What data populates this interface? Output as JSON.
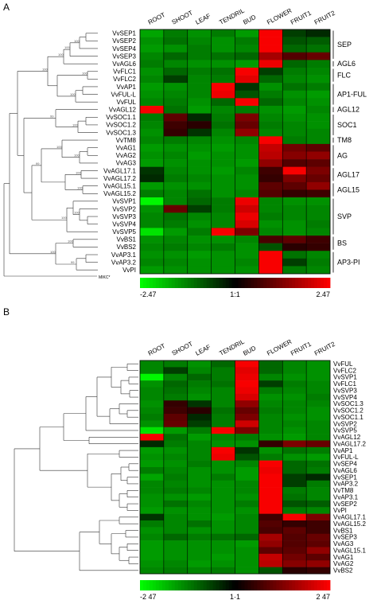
{
  "chart_data": [
    {
      "type": "heatmap",
      "panel_label": "A",
      "columns": [
        "ROOT",
        "SHOOT",
        "LEAF",
        "TENDRIL",
        "BUD",
        "FLOWER",
        "FRUIT1",
        "FRUIT2"
      ],
      "rows": [
        "VvSEP1",
        "VvSEP2",
        "VvSEP4",
        "VvSEP3",
        "VvAGL6",
        "VvFLC1",
        "VvFLC2",
        "VvAP1",
        "VvFUL-L",
        "VvFUL",
        "VvAGL12",
        "VvSOC1.1",
        "VvSOC1.2",
        "VvSOC1.3",
        "VvTM8",
        "VvAG1",
        "VvAG2",
        "VvAG3",
        "VvAGL17.1",
        "VvAGL17.2",
        "VvAGL15.1",
        "VvAGL15.2",
        "VvSVP1",
        "VvSVP2",
        "VvSVP3",
        "VvSVP4",
        "VvSVP5",
        "VvBS1",
        "VvBS2",
        "VvAP3.1",
        "VvAP3.2",
        "VvPI"
      ],
      "outgroup_label": "MIKC*",
      "values": [
        [
          -1.6,
          -1.2,
          -1.4,
          -1.2,
          -1.5,
          2.4,
          -0.6,
          -0.4
        ],
        [
          -1.4,
          -1.1,
          -1.3,
          -1.4,
          -1.2,
          2.4,
          -0.8,
          -0.9
        ],
        [
          -1.5,
          -1.4,
          -1.2,
          -1.4,
          -1.3,
          2.4,
          -1.0,
          -1.1
        ],
        [
          -1.3,
          -1.0,
          -1.2,
          -1.1,
          -1.0,
          1.6,
          0.8,
          1.0
        ],
        [
          -1.2,
          -1.3,
          -1.4,
          -1.4,
          -1.5,
          2.3,
          -1.0,
          -1.2
        ],
        [
          -1.4,
          -1.0,
          -1.2,
          -1.1,
          2.4,
          -0.6,
          -1.2,
          -1.3
        ],
        [
          -1.3,
          -0.6,
          -1.3,
          -1.2,
          2.2,
          -1.0,
          -1.3,
          -1.4
        ],
        [
          -1.5,
          -1.4,
          -1.3,
          2.4,
          -0.5,
          -1.4,
          -1.1,
          -1.2
        ],
        [
          -1.4,
          -1.3,
          -1.3,
          2.3,
          -0.8,
          -1.2,
          -1.4,
          -1.5
        ],
        [
          -1.3,
          -1.2,
          -1.4,
          -1.0,
          2.4,
          -1.0,
          -1.3,
          -1.4
        ],
        [
          2.4,
          -1.1,
          -1.5,
          -1.3,
          -1.2,
          -1.4,
          -1.5,
          -1.3
        ],
        [
          -1.2,
          0.9,
          -0.4,
          -1.2,
          1.2,
          -1.3,
          -1.4,
          -1.4
        ],
        [
          -1.3,
          0.6,
          0.4,
          -1.1,
          1.0,
          -1.2,
          -1.3,
          -1.4
        ],
        [
          -1.4,
          0.5,
          -0.5,
          -1.3,
          1.4,
          -1.3,
          -1.3,
          -1.3
        ],
        [
          -1.3,
          -1.2,
          -1.3,
          -1.4,
          -1.3,
          2.4,
          -1.2,
          -1.3
        ],
        [
          -1.5,
          -1.4,
          -1.4,
          -1.5,
          -1.4,
          1.9,
          1.1,
          0.9
        ],
        [
          -1.4,
          -1.3,
          -1.5,
          -1.4,
          -1.4,
          1.8,
          1.3,
          1.4
        ],
        [
          -1.5,
          -1.4,
          -1.4,
          -1.4,
          -1.5,
          1.4,
          0.8,
          0.9
        ],
        [
          -0.5,
          -1.3,
          -1.4,
          -1.5,
          -1.3,
          0.6,
          2.4,
          1.2
        ],
        [
          -0.4,
          -1.2,
          -1.3,
          -1.4,
          -1.4,
          0.5,
          1.2,
          1.0
        ],
        [
          -1.5,
          -1.4,
          -1.4,
          -1.4,
          -1.4,
          0.9,
          0.9,
          1.4
        ],
        [
          -1.2,
          -1.3,
          -1.1,
          -1.4,
          -1.3,
          0.8,
          0.5,
          0.6
        ],
        [
          -2.4,
          -1.3,
          -1.0,
          -1.2,
          2.3,
          -1.3,
          -1.4,
          -1.4
        ],
        [
          -1.4,
          1.0,
          -0.6,
          -1.2,
          2.0,
          -1.3,
          -1.3,
          -1.3
        ],
        [
          -1.3,
          -1.1,
          -1.3,
          -1.3,
          2.3,
          -1.2,
          -1.3,
          -1.3
        ],
        [
          -1.3,
          -1.2,
          -1.4,
          -1.3,
          2.1,
          -1.4,
          -1.4,
          -1.2
        ],
        [
          -2.2,
          -1.5,
          -1.2,
          2.4,
          1.2,
          -1.3,
          -1.4,
          -1.3
        ],
        [
          -1.4,
          -1.3,
          -1.4,
          -1.4,
          -1.3,
          0.7,
          0.9,
          0.6
        ],
        [
          -1.3,
          -1.2,
          -1.3,
          -1.2,
          -1.4,
          -0.8,
          0.4,
          0.5
        ],
        [
          -1.4,
          -1.4,
          -1.5,
          -1.4,
          -1.4,
          2.4,
          -1.1,
          -1.3
        ],
        [
          -1.3,
          -1.3,
          -1.4,
          -1.4,
          -1.3,
          2.4,
          -0.6,
          -1.2
        ],
        [
          -1.5,
          -1.4,
          -1.4,
          -1.4,
          -1.4,
          2.4,
          -1.2,
          -1.3
        ]
      ],
      "groups": [
        {
          "label": "SEP",
          "rows": [
            0,
            3
          ]
        },
        {
          "label": "AGL6",
          "rows": [
            4,
            4
          ]
        },
        {
          "label": "FLC",
          "rows": [
            5,
            6
          ]
        },
        {
          "label": "AP1-FUL",
          "rows": [
            7,
            9
          ]
        },
        {
          "label": "AGL12",
          "rows": [
            10,
            10
          ]
        },
        {
          "label": "SOC1",
          "rows": [
            11,
            13
          ]
        },
        {
          "label": "TM8",
          "rows": [
            14,
            14
          ]
        },
        {
          "label": "AG",
          "rows": [
            15,
            17
          ]
        },
        {
          "label": "AGL17",
          "rows": [
            18,
            19
          ]
        },
        {
          "label": "AGL15",
          "rows": [
            20,
            21
          ]
        },
        {
          "label": "SVP",
          "rows": [
            22,
            26
          ]
        },
        {
          "label": "BS",
          "rows": [
            27,
            28
          ]
        },
        {
          "label": "AP3-PI",
          "rows": [
            29,
            31
          ]
        }
      ],
      "bootstrap_labels": [
        "100",
        "100",
        "100",
        "100",
        "100",
        "100",
        "100",
        "100",
        "100",
        "100",
        "100",
        "100",
        "99",
        "99",
        "100",
        "99",
        "100",
        "100"
      ],
      "colorscale": {
        "min": -2.47,
        "mid": 0,
        "max": 2.47,
        "min_color": "#00ff00",
        "mid_color": "#000000",
        "max_color": "#ff0000"
      },
      "scale_labels": [
        "-2.47",
        "1:1",
        "2.47"
      ]
    },
    {
      "type": "heatmap",
      "panel_label": "B",
      "columns": [
        "ROOT",
        "SHOOT",
        "LEAF",
        "TENDRIL",
        "BUD",
        "FLOWER",
        "FRUIT1",
        "FRUIT2"
      ],
      "rows": [
        "VvFUL",
        "VvFLC2",
        "VvSVP1",
        "VvFLC1",
        "VvSVP3",
        "VvSVP4",
        "VvSOC1.3",
        "VvSOC1.2",
        "VvSOC1.1",
        "VvSVP2",
        "VvSVP5",
        "VvAGL12",
        "VvAGL17.2",
        "VvAP1",
        "VvFUL-L",
        "VvSEP4",
        "VvAGL6",
        "VvSEP1",
        "VvAP3.2",
        "VvTM8",
        "VvAP3.1",
        "VvSEP2",
        "VvPI",
        "VvAGL17.1",
        "VvAGL15.2",
        "VvBS1",
        "VvSEP3",
        "VvAG3",
        "VvAGL15.1",
        "VvAG1",
        "VvAG2",
        "VvBS2"
      ],
      "values": [
        [
          -1.3,
          -1.2,
          -1.4,
          -1.0,
          2.4,
          -1.0,
          -1.3,
          -1.4
        ],
        [
          -1.3,
          -0.6,
          -1.3,
          -1.2,
          2.2,
          -1.0,
          -1.3,
          -1.4
        ],
        [
          -2.4,
          -1.3,
          -1.0,
          -1.2,
          2.3,
          -1.3,
          -1.4,
          -1.4
        ],
        [
          -1.4,
          -1.0,
          -1.2,
          -1.1,
          2.4,
          -0.6,
          -1.2,
          -1.3
        ],
        [
          -1.3,
          -1.1,
          -1.3,
          -1.3,
          2.3,
          -1.2,
          -1.3,
          -1.3
        ],
        [
          -1.3,
          -1.2,
          -1.4,
          -1.3,
          2.1,
          -1.4,
          -1.4,
          -1.2
        ],
        [
          -1.4,
          0.5,
          -0.5,
          -1.3,
          1.4,
          -1.3,
          -1.3,
          -1.3
        ],
        [
          -1.3,
          0.6,
          0.4,
          -1.1,
          1.0,
          -1.2,
          -1.3,
          -1.4
        ],
        [
          -1.2,
          0.9,
          -0.4,
          -1.2,
          1.2,
          -1.3,
          -1.4,
          -1.4
        ],
        [
          -1.4,
          1.0,
          -0.6,
          -1.2,
          2.0,
          -1.3,
          -1.3,
          -1.3
        ],
        [
          -2.2,
          -1.5,
          -1.2,
          2.4,
          1.2,
          -1.3,
          -1.4,
          -1.3
        ],
        [
          2.4,
          -1.1,
          -1.5,
          -1.3,
          -1.2,
          -1.4,
          -1.5,
          -1.3
        ],
        [
          -0.4,
          -1.2,
          -1.3,
          -1.4,
          -1.4,
          0.5,
          1.2,
          1.0
        ],
        [
          -1.5,
          -1.4,
          -1.3,
          2.4,
          -0.5,
          -1.4,
          -1.1,
          -1.2
        ],
        [
          -1.4,
          -1.3,
          -1.3,
          2.3,
          -0.8,
          -1.2,
          -1.4,
          -1.5
        ],
        [
          -1.5,
          -1.4,
          -1.2,
          -1.4,
          -1.3,
          2.4,
          -1.0,
          -1.1
        ],
        [
          -1.2,
          -1.3,
          -1.4,
          -1.4,
          -1.5,
          2.3,
          -1.0,
          -1.2
        ],
        [
          -1.6,
          -1.2,
          -1.4,
          -1.2,
          -1.5,
          2.4,
          -0.6,
          -0.4
        ],
        [
          -1.3,
          -1.3,
          -1.4,
          -1.4,
          -1.3,
          2.4,
          -0.6,
          -1.2
        ],
        [
          -1.3,
          -1.2,
          -1.3,
          -1.4,
          -1.3,
          2.4,
          -1.2,
          -1.3
        ],
        [
          -1.4,
          -1.4,
          -1.5,
          -1.4,
          -1.4,
          2.4,
          -1.1,
          -1.3
        ],
        [
          -1.4,
          -1.1,
          -1.3,
          -1.4,
          -1.2,
          2.4,
          -0.8,
          -0.9
        ],
        [
          -1.5,
          -1.4,
          -1.4,
          -1.4,
          -1.4,
          2.4,
          -1.2,
          -1.3
        ],
        [
          -0.5,
          -1.3,
          -1.4,
          -1.5,
          -1.3,
          0.6,
          2.4,
          1.2
        ],
        [
          -1.2,
          -1.3,
          -1.1,
          -1.4,
          -1.3,
          0.8,
          0.5,
          0.6
        ],
        [
          -1.4,
          -1.3,
          -1.4,
          -1.4,
          -1.3,
          0.7,
          0.9,
          0.6
        ],
        [
          -1.3,
          -1.0,
          -1.2,
          -1.1,
          -1.0,
          1.6,
          0.8,
          1.0
        ],
        [
          -1.5,
          -1.4,
          -1.4,
          -1.4,
          -1.5,
          1.4,
          0.8,
          0.9
        ],
        [
          -1.5,
          -1.4,
          -1.4,
          -1.4,
          -1.4,
          0.9,
          0.9,
          1.4
        ],
        [
          -1.5,
          -1.4,
          -1.4,
          -1.5,
          -1.4,
          1.9,
          1.1,
          0.9
        ],
        [
          -1.4,
          -1.3,
          -1.5,
          -1.4,
          -1.4,
          1.8,
          1.3,
          1.4
        ],
        [
          -1.3,
          -1.2,
          -1.3,
          -1.2,
          -1.4,
          -0.8,
          0.4,
          0.5
        ]
      ],
      "colorscale": {
        "min": -2.47,
        "mid": 0,
        "max": 2.47,
        "min_color": "#00ff00",
        "mid_color": "#000000",
        "max_color": "#ff0000"
      },
      "scale_labels": [
        "-2 47",
        "1·1",
        "2 47"
      ]
    }
  ]
}
